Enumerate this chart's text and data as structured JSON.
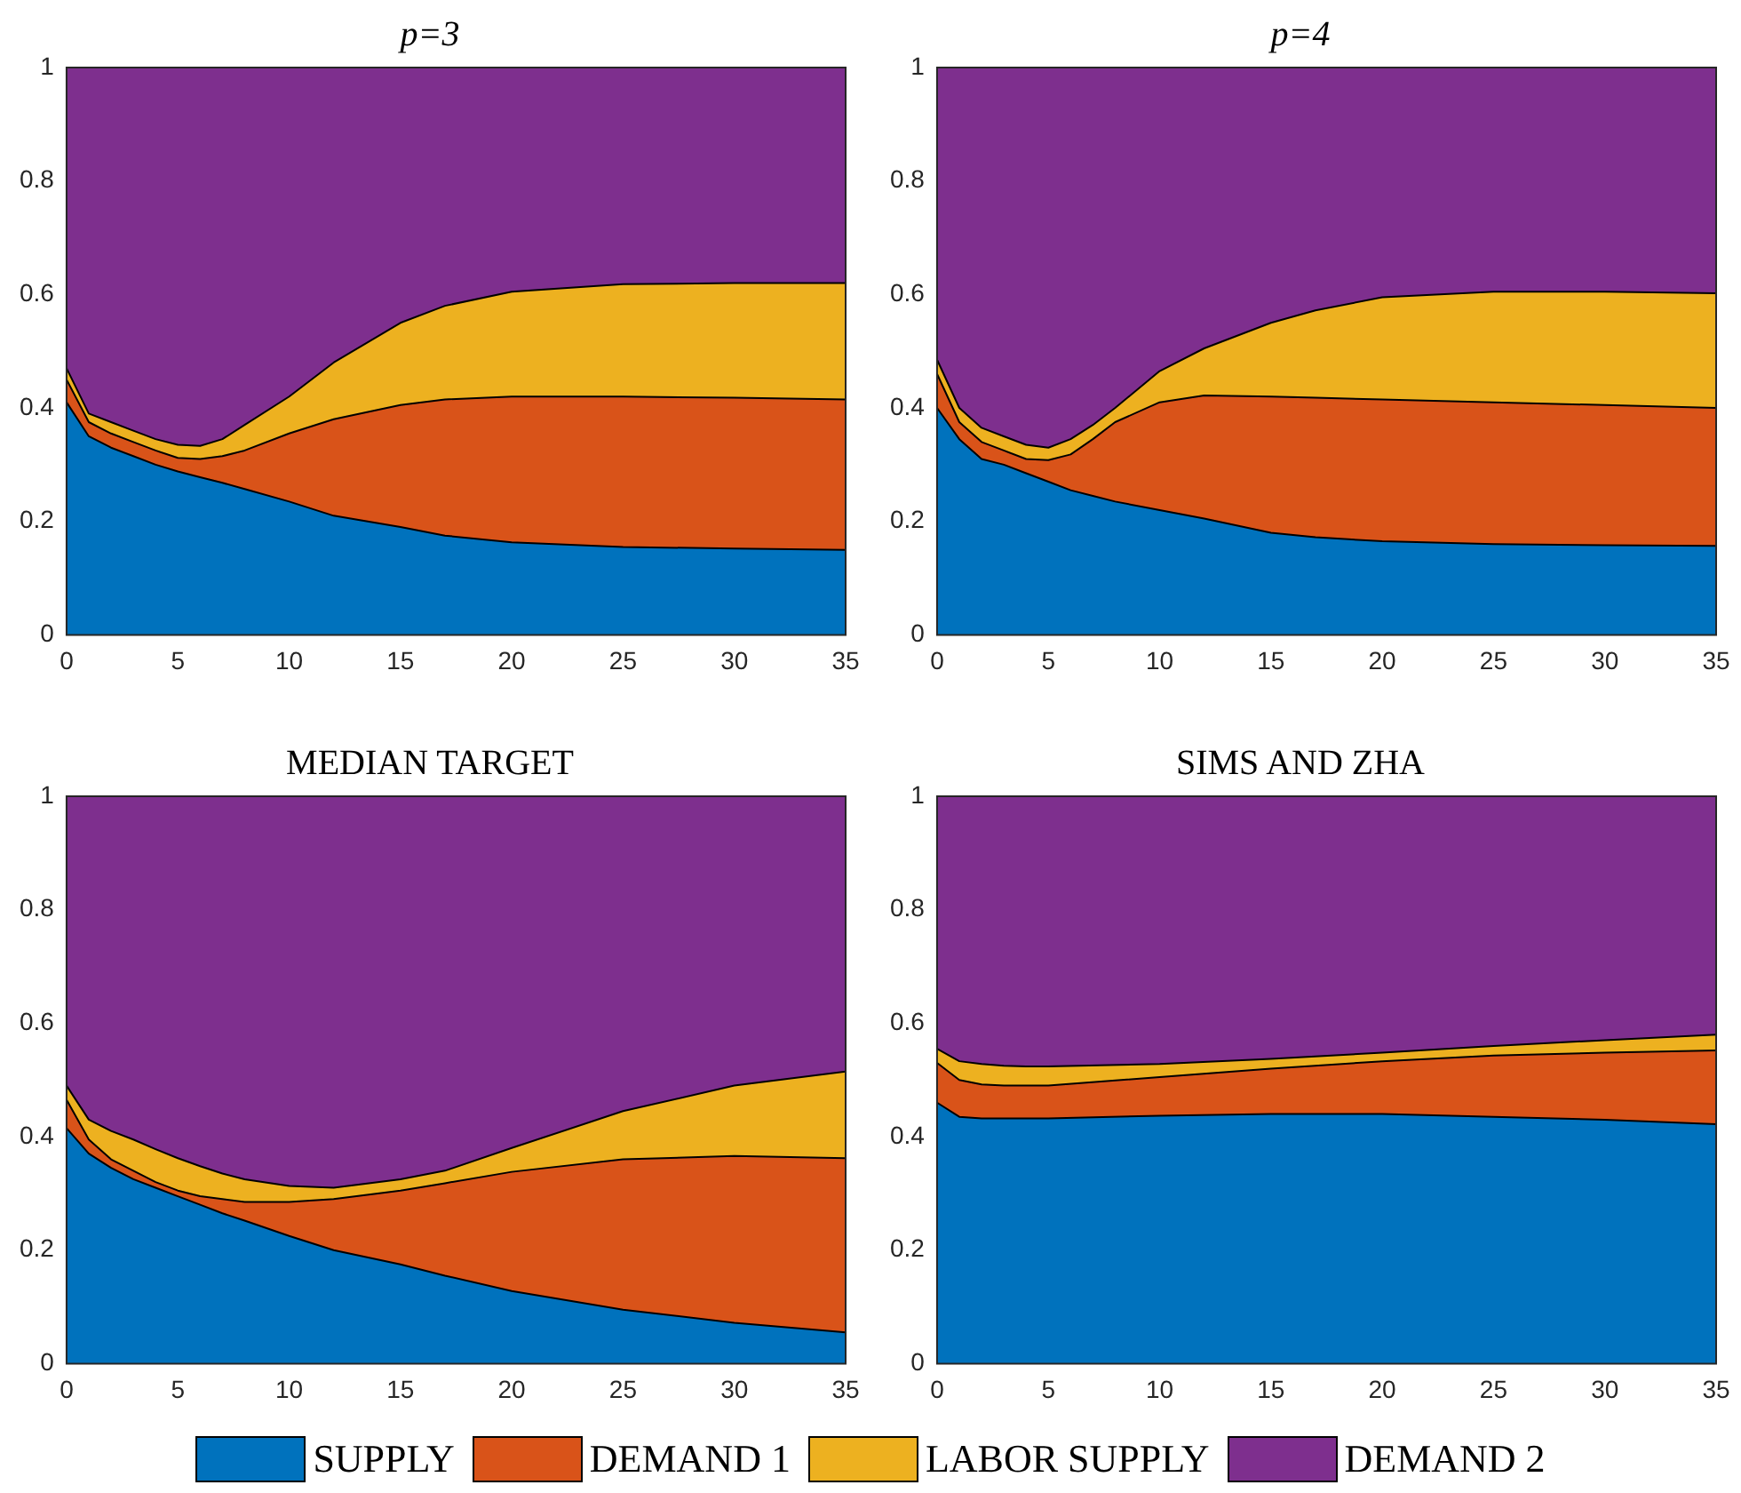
{
  "chart_data": [
    {
      "type": "area",
      "title": "p=3",
      "stacked": true,
      "x": [
        0,
        1,
        2,
        3,
        4,
        5,
        6,
        7,
        8,
        10,
        12,
        15,
        17,
        20,
        25,
        30,
        35
      ],
      "xlim": [
        0,
        35
      ],
      "xticks": [
        0,
        5,
        10,
        15,
        20,
        25,
        30,
        35
      ],
      "ylim": [
        0,
        1
      ],
      "yticks": [
        0,
        0.2,
        0.4,
        0.6,
        0.8,
        1
      ],
      "series": [
        {
          "color": "#0072bd",
          "values": [
            0.41,
            0.35,
            0.33,
            0.315,
            0.3,
            0.288,
            0.278,
            0.268,
            0.257,
            0.235,
            0.21,
            0.19,
            0.175,
            0.163,
            0.155,
            0.152,
            0.15
          ]
        },
        {
          "color": "#d95319",
          "values": [
            0.04,
            0.025,
            0.025,
            0.025,
            0.025,
            0.024,
            0.032,
            0.047,
            0.068,
            0.12,
            0.17,
            0.215,
            0.24,
            0.257,
            0.265,
            0.266,
            0.265
          ]
        },
        {
          "color": "#edb120",
          "values": [
            0.02,
            0.015,
            0.02,
            0.02,
            0.02,
            0.023,
            0.023,
            0.03,
            0.045,
            0.065,
            0.1,
            0.145,
            0.165,
            0.185,
            0.198,
            0.202,
            0.205
          ]
        },
        {
          "color": "#7e2f8e",
          "values": [
            0.53,
            0.61,
            0.625,
            0.64,
            0.655,
            0.665,
            0.667,
            0.655,
            0.63,
            0.58,
            0.52,
            0.45,
            0.42,
            0.395,
            0.382,
            0.38,
            0.38
          ]
        }
      ]
    },
    {
      "type": "area",
      "title": "p=4",
      "stacked": true,
      "x": [
        0,
        1,
        2,
        3,
        4,
        5,
        6,
        7,
        8,
        10,
        12,
        15,
        17,
        20,
        25,
        30,
        35
      ],
      "xlim": [
        0,
        35
      ],
      "xticks": [
        0,
        5,
        10,
        15,
        20,
        25,
        30,
        35
      ],
      "ylim": [
        0,
        1
      ],
      "yticks": [
        0,
        0.2,
        0.4,
        0.6,
        0.8,
        1
      ],
      "series": [
        {
          "color": "#0072bd",
          "values": [
            0.4,
            0.345,
            0.31,
            0.3,
            0.285,
            0.27,
            0.255,
            0.245,
            0.235,
            0.22,
            0.205,
            0.18,
            0.172,
            0.165,
            0.16,
            0.158,
            0.157
          ]
        },
        {
          "color": "#d95319",
          "values": [
            0.06,
            0.03,
            0.03,
            0.025,
            0.025,
            0.038,
            0.063,
            0.1,
            0.14,
            0.19,
            0.217,
            0.24,
            0.246,
            0.25,
            0.25,
            0.247,
            0.243
          ]
        },
        {
          "color": "#edb120",
          "values": [
            0.025,
            0.025,
            0.025,
            0.025,
            0.025,
            0.022,
            0.027,
            0.025,
            0.025,
            0.055,
            0.083,
            0.13,
            0.154,
            0.18,
            0.195,
            0.2,
            0.202
          ]
        },
        {
          "color": "#7e2f8e",
          "values": [
            0.515,
            0.6,
            0.635,
            0.65,
            0.665,
            0.67,
            0.655,
            0.63,
            0.6,
            0.535,
            0.495,
            0.45,
            0.428,
            0.405,
            0.395,
            0.395,
            0.398
          ]
        }
      ]
    },
    {
      "type": "area",
      "title": "MEDIAN TARGET",
      "stacked": true,
      "x": [
        0,
        1,
        2,
        3,
        4,
        5,
        6,
        7,
        8,
        10,
        12,
        15,
        17,
        20,
        25,
        30,
        35
      ],
      "xlim": [
        0,
        35
      ],
      "xticks": [
        0,
        5,
        10,
        15,
        20,
        25,
        30,
        35
      ],
      "ylim": [
        0,
        1
      ],
      "yticks": [
        0,
        0.2,
        0.4,
        0.6,
        0.8,
        1
      ],
      "series": [
        {
          "color": "#0072bd",
          "values": [
            0.415,
            0.37,
            0.345,
            0.325,
            0.31,
            0.295,
            0.28,
            0.265,
            0.252,
            0.225,
            0.2,
            0.175,
            0.155,
            0.128,
            0.095,
            0.072,
            0.055
          ]
        },
        {
          "color": "#d95319",
          "values": [
            0.05,
            0.025,
            0.015,
            0.015,
            0.01,
            0.01,
            0.015,
            0.025,
            0.033,
            0.06,
            0.09,
            0.13,
            0.163,
            0.21,
            0.265,
            0.294,
            0.307
          ]
        },
        {
          "color": "#edb120",
          "values": [
            0.025,
            0.035,
            0.05,
            0.055,
            0.058,
            0.057,
            0.053,
            0.045,
            0.04,
            0.028,
            0.02,
            0.02,
            0.022,
            0.042,
            0.085,
            0.124,
            0.153
          ]
        },
        {
          "color": "#7e2f8e",
          "values": [
            0.51,
            0.57,
            0.59,
            0.605,
            0.622,
            0.638,
            0.652,
            0.665,
            0.675,
            0.687,
            0.69,
            0.675,
            0.66,
            0.62,
            0.555,
            0.51,
            0.485
          ]
        }
      ]
    },
    {
      "type": "area",
      "title": "SIMS AND ZHA",
      "stacked": true,
      "legend": "bottom",
      "x": [
        0,
        1,
        2,
        3,
        4,
        5,
        10,
        15,
        20,
        25,
        30,
        35
      ],
      "xlim": [
        0,
        35
      ],
      "xticks": [
        0,
        5,
        10,
        15,
        20,
        25,
        30,
        35
      ],
      "ylim": [
        0,
        1
      ],
      "yticks": [
        0,
        0.2,
        0.4,
        0.6,
        0.8,
        1
      ],
      "series": [
        {
          "name": "SUPPLY",
          "color": "#0072bd",
          "values": [
            0.46,
            0.435,
            0.432,
            0.432,
            0.432,
            0.432,
            0.437,
            0.44,
            0.44,
            0.435,
            0.43,
            0.422
          ]
        },
        {
          "name": "DEMAND 1",
          "color": "#d95319",
          "values": [
            0.07,
            0.065,
            0.06,
            0.058,
            0.058,
            0.058,
            0.068,
            0.08,
            0.093,
            0.108,
            0.118,
            0.13
          ]
        },
        {
          "name": "LABOR SUPPLY",
          "color": "#edb120",
          "values": [
            0.025,
            0.033,
            0.036,
            0.035,
            0.034,
            0.034,
            0.023,
            0.017,
            0.015,
            0.017,
            0.022,
            0.028
          ]
        },
        {
          "name": "DEMAND 2",
          "color": "#7e2f8e",
          "values": [
            0.445,
            0.467,
            0.472,
            0.475,
            0.476,
            0.476,
            0.472,
            0.463,
            0.452,
            0.44,
            0.43,
            0.42
          ]
        }
      ]
    }
  ]
}
